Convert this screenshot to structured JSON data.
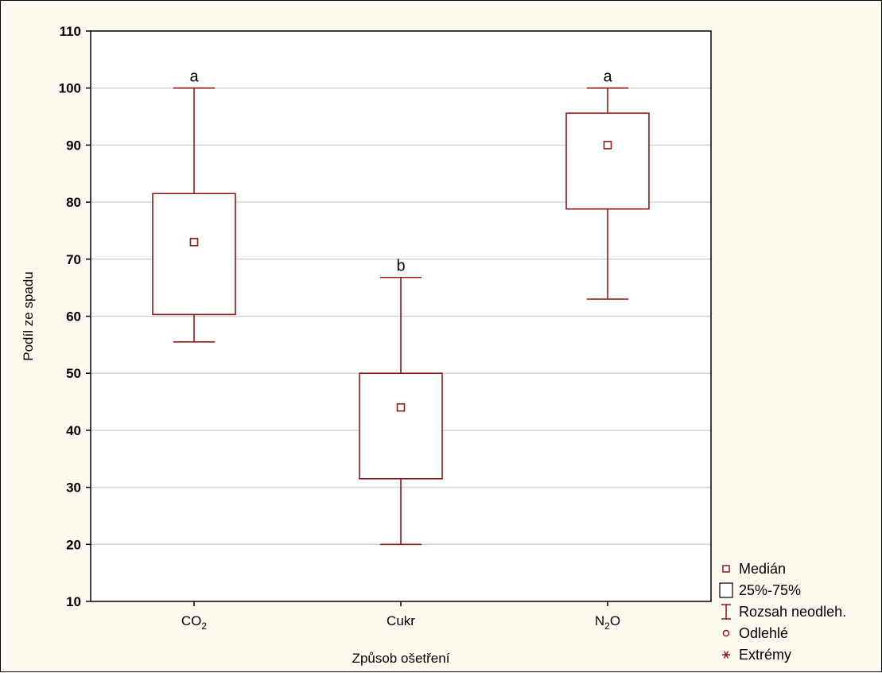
{
  "chart_data": {
    "type": "box",
    "xlabel": "Způsob ošetření",
    "ylabel": "Podíl ze spadu",
    "ylim": [
      10,
      110
    ],
    "yticks": [
      10,
      20,
      30,
      40,
      50,
      60,
      70,
      80,
      90,
      100,
      110
    ],
    "grid": true,
    "categories": [
      {
        "label": "CO",
        "sub": "2",
        "tail": ""
      },
      {
        "label": "Cukr",
        "sub": "",
        "tail": ""
      },
      {
        "label": "N",
        "sub": "2",
        "tail": "O"
      }
    ],
    "boxes": [
      {
        "median": 73,
        "q1": 60.3,
        "q3": 81.5,
        "min": 55.5,
        "max": 100,
        "sig": "a"
      },
      {
        "median": 44,
        "q1": 31.5,
        "q3": 50,
        "min": 20,
        "max": 66.8,
        "sig": "b"
      },
      {
        "median": 90,
        "q1": 78.8,
        "q3": 95.6,
        "min": 63,
        "max": 100,
        "sig": "a"
      }
    ],
    "legend": {
      "position": "bottom-right",
      "items": [
        {
          "label": "Medián",
          "symbol": "small-square-icon"
        },
        {
          "label": "25%-75%",
          "symbol": "box-icon"
        },
        {
          "label": "Rozsah neodleh.",
          "symbol": "whisker-icon"
        },
        {
          "label": "Odlehlé",
          "symbol": "circle-icon"
        },
        {
          "label": "Extrémy",
          "symbol": "asterisk-icon"
        }
      ]
    },
    "colors": {
      "box": "#8b1a1a",
      "background": "#fffaf0",
      "grid": "#d3d3d3"
    }
  }
}
